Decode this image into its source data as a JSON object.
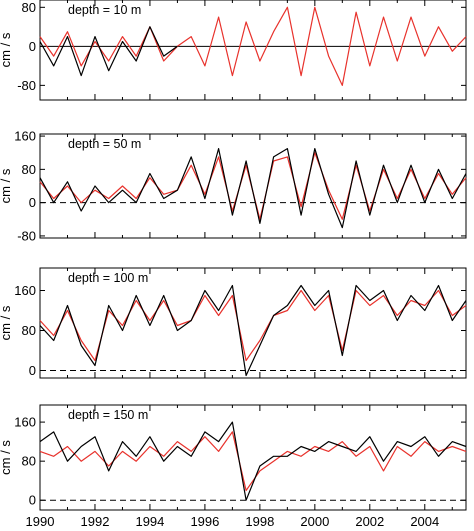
{
  "chart_data": [
    {
      "type": "line",
      "annotation": "depth = 10 m",
      "ylabel": "cm / s",
      "ylim": [
        -110,
        95
      ],
      "yticks": [
        80,
        0,
        -80
      ],
      "zero_line": "solid",
      "xlim": [
        1990.0,
        2005.5
      ],
      "series": [
        {
          "color": "#e8322c",
          "x": [
            1990.0,
            1990.5,
            1991.0,
            1991.5,
            1992.0,
            1992.5,
            1993.0,
            1993.5,
            1994.0,
            1994.5,
            1995.0,
            1995.5,
            1996.0,
            1996.5,
            1997.0,
            1997.5,
            1998.0,
            1998.5,
            1999.0,
            1999.5,
            2000.0,
            2000.5,
            2001.0,
            2001.5,
            2002.0,
            2002.5,
            2003.0,
            2003.5,
            2004.0,
            2004.5,
            2005.0,
            2005.5
          ],
          "y": [
            20,
            -20,
            30,
            -40,
            10,
            -30,
            20,
            -20,
            40,
            -30,
            0,
            20,
            -40,
            60,
            -60,
            50,
            -30,
            30,
            80,
            -60,
            80,
            -20,
            -80,
            70,
            -40,
            60,
            -30,
            60,
            -20,
            40,
            -10,
            20
          ]
        },
        {
          "color": "#000000",
          "x": [
            1990.0,
            1990.5,
            1991.0,
            1991.5,
            1992.0,
            1992.5,
            1993.0,
            1993.5,
            1994.0,
            1994.5,
            1995.0
          ],
          "y": [
            10,
            -40,
            20,
            -60,
            20,
            -50,
            10,
            -30,
            40,
            -20,
            0
          ]
        }
      ]
    },
    {
      "type": "line",
      "annotation": "depth = 50 m",
      "ylabel": "cm / s",
      "ylim": [
        -85,
        165
      ],
      "yticks": [
        160,
        80,
        0,
        -80
      ],
      "zero_line": "dashed",
      "xlim": [
        1990.0,
        2005.5
      ],
      "series": [
        {
          "color": "#e8322c",
          "x": [
            1990.0,
            1990.5,
            1991.0,
            1991.5,
            1992.0,
            1992.5,
            1993.0,
            1993.5,
            1994.0,
            1994.5,
            1995.0,
            1995.5,
            1996.0,
            1996.5,
            1997.0,
            1997.5,
            1998.0,
            1998.5,
            1999.0,
            1999.5,
            2000.0,
            2000.5,
            2001.0,
            2001.5,
            2002.0,
            2002.5,
            2003.0,
            2003.5,
            2004.0,
            2004.5,
            2005.0,
            2005.5
          ],
          "y": [
            50,
            10,
            40,
            0,
            30,
            10,
            40,
            10,
            60,
            20,
            30,
            90,
            20,
            110,
            -20,
            90,
            -40,
            100,
            110,
            -10,
            120,
            30,
            -40,
            90,
            -20,
            80,
            10,
            80,
            10,
            70,
            20,
            60
          ]
        },
        {
          "color": "#000000",
          "x": [
            1990.0,
            1990.5,
            1991.0,
            1991.5,
            1992.0,
            1992.5,
            1993.0,
            1993.5,
            1994.0,
            1994.5,
            1995.0,
            1995.5,
            1996.0,
            1996.5,
            1997.0,
            1997.5,
            1998.0,
            1998.5,
            1999.0,
            1999.5,
            2000.0,
            2000.5,
            2001.0,
            2001.5,
            2002.0,
            2002.5,
            2003.0,
            2003.5,
            2004.0,
            2004.5,
            2005.0,
            2005.5
          ],
          "y": [
            60,
            0,
            50,
            -20,
            40,
            0,
            30,
            0,
            70,
            10,
            30,
            110,
            10,
            130,
            -30,
            100,
            -50,
            110,
            130,
            -30,
            130,
            20,
            -60,
            100,
            -30,
            90,
            0,
            90,
            0,
            80,
            10,
            70
          ]
        }
      ]
    },
    {
      "type": "line",
      "annotation": "depth = 100 m",
      "ylabel": "cm / s",
      "ylim": [
        -15,
        205
      ],
      "yticks": [
        160,
        80,
        0
      ],
      "zero_line": "dashed",
      "xlim": [
        1990.0,
        2005.5
      ],
      "series": [
        {
          "color": "#e8322c",
          "x": [
            1990.0,
            1990.5,
            1991.0,
            1991.5,
            1992.0,
            1992.5,
            1993.0,
            1993.5,
            1994.0,
            1994.5,
            1995.0,
            1995.5,
            1996.0,
            1996.5,
            1997.0,
            1997.5,
            1998.0,
            1998.5,
            1999.0,
            1999.5,
            2000.0,
            2000.5,
            2001.0,
            2001.5,
            2002.0,
            2002.5,
            2003.0,
            2003.5,
            2004.0,
            2004.5,
            2005.0,
            2005.5
          ],
          "y": [
            100,
            70,
            120,
            60,
            20,
            120,
            90,
            140,
            100,
            140,
            90,
            100,
            150,
            110,
            150,
            20,
            60,
            110,
            120,
            160,
            120,
            150,
            40,
            160,
            130,
            150,
            110,
            140,
            130,
            160,
            110,
            130
          ]
        },
        {
          "color": "#000000",
          "x": [
            1990.0,
            1990.5,
            1991.0,
            1991.5,
            1992.0,
            1992.5,
            1993.0,
            1993.5,
            1994.0,
            1994.5,
            1995.0,
            1995.5,
            1996.0,
            1996.5,
            1997.0,
            1997.5,
            1998.0,
            1998.5,
            1999.0,
            1999.5,
            2000.0,
            2000.5,
            2001.0,
            2001.5,
            2002.0,
            2002.5,
            2003.0,
            2003.5,
            2004.0,
            2004.5,
            2005.0,
            2005.5
          ],
          "y": [
            90,
            60,
            130,
            50,
            10,
            130,
            80,
            150,
            90,
            150,
            80,
            100,
            160,
            120,
            170,
            -10,
            50,
            110,
            130,
            170,
            130,
            160,
            30,
            170,
            140,
            160,
            100,
            150,
            120,
            170,
            100,
            140
          ]
        }
      ]
    },
    {
      "type": "line",
      "annotation": "depth = 150 m",
      "ylabel": "cm / s",
      "ylim": [
        -20,
        195
      ],
      "yticks": [
        160,
        80,
        0
      ],
      "zero_line": "dashed",
      "xlim": [
        1990.0,
        2005.5
      ],
      "series": [
        {
          "color": "#e8322c",
          "x": [
            1990.0,
            1990.5,
            1991.0,
            1991.5,
            1992.0,
            1992.5,
            1993.0,
            1993.5,
            1994.0,
            1994.5,
            1995.0,
            1995.5,
            1996.0,
            1996.5,
            1997.0,
            1997.5,
            1998.0,
            1998.5,
            1999.0,
            1999.5,
            2000.0,
            2000.5,
            2001.0,
            2001.5,
            2002.0,
            2002.5,
            2003.0,
            2003.5,
            2004.0,
            2004.5,
            2005.0,
            2005.5
          ],
          "y": [
            100,
            90,
            110,
            80,
            100,
            70,
            100,
            80,
            110,
            90,
            120,
            100,
            130,
            100,
            140,
            20,
            60,
            80,
            100,
            90,
            110,
            100,
            120,
            90,
            110,
            60,
            110,
            90,
            120,
            100,
            110,
            100
          ]
        },
        {
          "color": "#000000",
          "x": [
            1990.0,
            1990.5,
            1991.0,
            1991.5,
            1992.0,
            1992.5,
            1993.0,
            1993.5,
            1994.0,
            1994.5,
            1995.0,
            1995.5,
            1996.0,
            1996.5,
            1997.0,
            1997.5,
            1998.0,
            1998.5,
            1999.0,
            1999.5,
            2000.0,
            2000.5,
            2001.0,
            2001.5,
            2002.0,
            2002.5,
            2003.0,
            2003.5,
            2004.0,
            2004.5,
            2005.0,
            2005.5
          ],
          "y": [
            120,
            140,
            80,
            110,
            130,
            60,
            120,
            90,
            130,
            80,
            110,
            90,
            140,
            120,
            160,
            0,
            70,
            90,
            90,
            110,
            100,
            120,
            110,
            100,
            130,
            80,
            120,
            110,
            130,
            90,
            120,
            110
          ]
        }
      ]
    }
  ],
  "xaxis": {
    "tick_labels": [
      "1990",
      "1992",
      "1994",
      "1996",
      "1998",
      "2000",
      "2002",
      "2004"
    ],
    "tick_values": [
      1990,
      1992,
      1994,
      1996,
      1998,
      2000,
      2002,
      2004
    ]
  }
}
